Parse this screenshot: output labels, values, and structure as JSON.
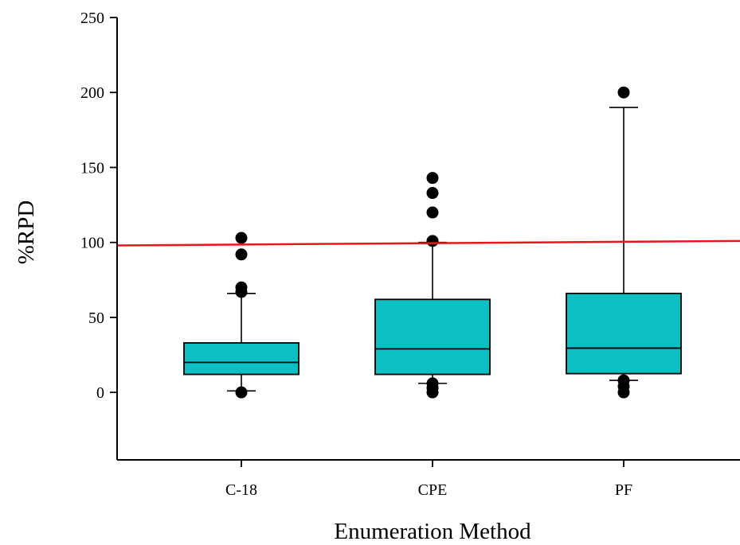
{
  "chart_data": {
    "type": "box",
    "xlabel": "Enumeration Method",
    "ylabel": "%RPD",
    "ylim": [
      -45,
      250
    ],
    "yticks": [
      0,
      50,
      100,
      150,
      200,
      250
    ],
    "grid": false,
    "legend": "none",
    "box_color": "#0BBFC2",
    "reference_line": {
      "y_start": 98,
      "y_end": 101,
      "color": "#E8161B"
    },
    "categories": [
      "C-18",
      "CPE",
      "PF"
    ],
    "boxes": [
      {
        "label": "C-18",
        "q1": 12,
        "median": 20,
        "q3": 33,
        "whisker_low": 1,
        "whisker_high": 66,
        "outliers": [
          0,
          67,
          70,
          92,
          103
        ]
      },
      {
        "label": "CPE",
        "q1": 12,
        "median": 29,
        "q3": 62,
        "whisker_low": 6,
        "whisker_high": 100,
        "outliers": [
          0,
          3,
          6,
          101,
          120,
          133,
          143
        ]
      },
      {
        "label": "PF",
        "q1": 12.5,
        "median": 29.5,
        "q3": 66,
        "whisker_low": 8,
        "whisker_high": 190,
        "outliers": [
          0,
          4,
          8,
          200
        ]
      }
    ]
  }
}
